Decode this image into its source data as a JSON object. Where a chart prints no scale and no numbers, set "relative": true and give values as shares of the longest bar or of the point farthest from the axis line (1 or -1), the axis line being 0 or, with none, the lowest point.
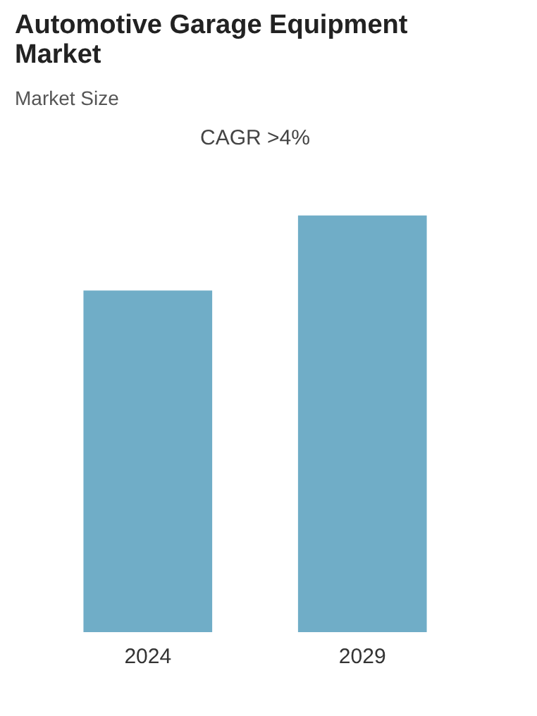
{
  "chart_data": {
    "type": "bar",
    "title": "Automotive Garage Equipment Market",
    "subtitle": "Market Size",
    "annotations": [
      "CAGR >4%"
    ],
    "categories": [
      "2024",
      "2029"
    ],
    "values": [
      0.82,
      1
    ],
    "relative": true,
    "color": "#70adc7",
    "grid": false
  }
}
